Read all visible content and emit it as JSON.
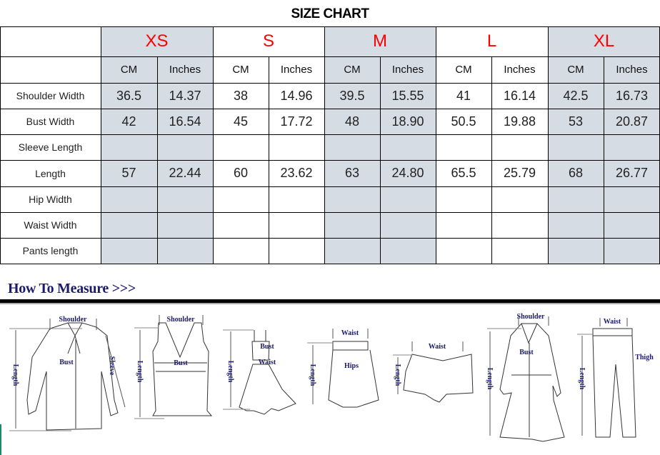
{
  "title": "SIZE CHART",
  "sizes": [
    {
      "label": "XS",
      "shaded": true
    },
    {
      "label": "S",
      "shaded": false
    },
    {
      "label": "M",
      "shaded": true
    },
    {
      "label": "L",
      "shaded": false
    },
    {
      "label": "XL",
      "shaded": true
    }
  ],
  "units": [
    "CM",
    "Inches"
  ],
  "size_color": "#ff0000",
  "shade_color": "#d6dce4",
  "rows": [
    {
      "label": "Shoulder Width",
      "values": [
        "36.5",
        "14.37",
        "38",
        "14.96",
        "39.5",
        "15.55",
        "41",
        "16.14",
        "42.5",
        "16.73"
      ]
    },
    {
      "label": "Bust Width",
      "values": [
        "42",
        "16.54",
        "45",
        "17.72",
        "48",
        "18.90",
        "50.5",
        "19.88",
        "53",
        "20.87"
      ]
    },
    {
      "label": "Sleeve Length",
      "values": [
        "",
        "",
        "",
        "",
        "",
        "",
        "",
        "",
        "",
        ""
      ]
    },
    {
      "label": "Length",
      "values": [
        "57",
        "22.44",
        "60",
        "23.62",
        "63",
        "24.80",
        "65.5",
        "25.79",
        "68",
        "26.77"
      ]
    },
    {
      "label": "Hip Width",
      "values": [
        "",
        "",
        "",
        "",
        "",
        "",
        "",
        "",
        "",
        ""
      ]
    },
    {
      "label": "Waist Width",
      "values": [
        "",
        "",
        "",
        "",
        "",
        "",
        "",
        "",
        "",
        ""
      ]
    },
    {
      "label": "Pants length",
      "values": [
        "",
        "",
        "",
        "",
        "",
        "",
        "",
        "",
        "",
        ""
      ]
    }
  ],
  "how_to_measure": {
    "heading": "How To Measure >>>",
    "labels": {
      "shoulder": "Shoulder",
      "bust": "Bust",
      "sleeve": "Sleeve",
      "length": "Length",
      "waist": "Waist",
      "hips": "Hips",
      "thigh": "Thigh"
    }
  }
}
